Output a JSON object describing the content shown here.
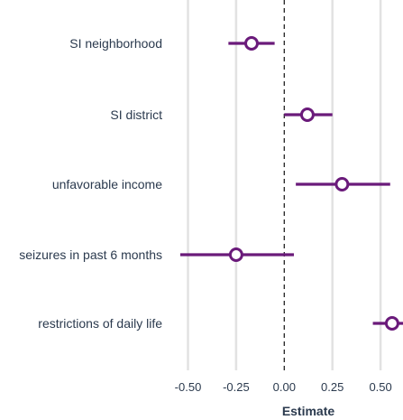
{
  "chart_data": {
    "type": "forest",
    "xlabel": "Estimate",
    "ylabel": "",
    "xlim": [
      -0.6,
      0.65
    ],
    "x_ticks": [
      -0.5,
      -0.25,
      0.0,
      0.25,
      0.5
    ],
    "x_tick_labels": [
      "-0.50",
      "-0.25",
      "0.00",
      "0.25",
      "0.50"
    ],
    "reference_line": 0,
    "grid": "vertical",
    "colors": {
      "marker": "#6a1a7a",
      "grid": "#e2e2e2",
      "text": "#2b3a4e"
    },
    "categories": [
      "SI neighborhood",
      "SI district",
      "unfavorable income",
      "seizures in past 6 months",
      "restrictions of daily life"
    ],
    "estimates": [
      -0.17,
      0.12,
      0.3,
      -0.25,
      0.56
    ],
    "ci_low": [
      -0.29,
      0.0,
      0.06,
      -0.54,
      0.46
    ],
    "ci_high": [
      -0.05,
      0.25,
      0.55,
      0.05,
      0.67
    ]
  }
}
